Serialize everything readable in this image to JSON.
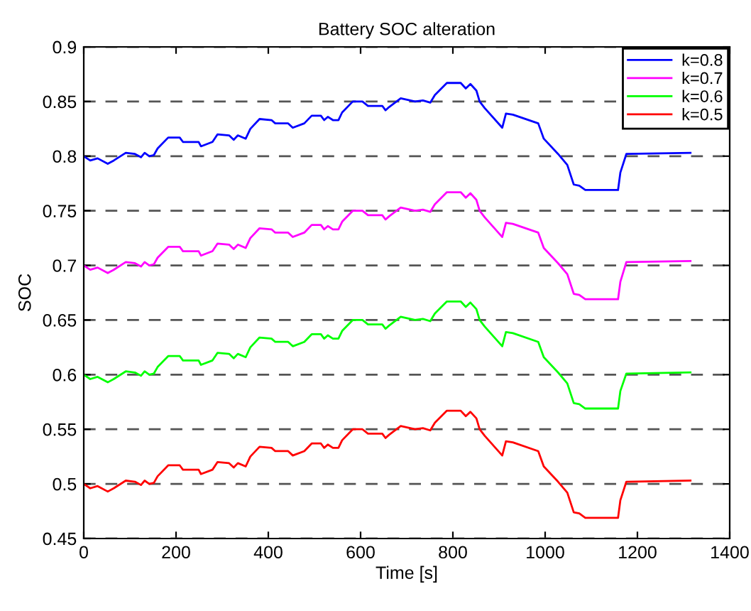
{
  "chart_data": {
    "type": "line",
    "title": "Battery SOC alteration",
    "xlabel": "Time [s]",
    "ylabel": "SOC",
    "x": [
      0,
      14,
      30,
      52,
      65,
      91,
      111,
      124,
      132,
      142,
      152,
      160,
      183,
      208,
      215,
      249,
      254,
      279,
      290,
      315,
      325,
      334,
      351,
      361,
      381,
      407,
      415,
      443,
      453,
      478,
      494,
      514,
      521,
      529,
      540,
      552,
      560,
      583,
      604,
      616,
      647,
      654,
      662,
      687,
      718,
      735,
      751,
      761,
      787,
      817,
      828,
      838,
      851,
      858,
      869,
      907,
      915,
      930,
      985,
      997,
      1028,
      1048,
      1062,
      1074,
      1087,
      1158,
      1163,
      1176,
      1315
    ],
    "series": [
      {
        "name": "k=0.8",
        "color": "#0000ff",
        "values": [
          0.8,
          0.796,
          0.798,
          0.793,
          0.796,
          0.803,
          0.802,
          0.799,
          0.803,
          0.8,
          0.801,
          0.807,
          0.817,
          0.817,
          0.813,
          0.813,
          0.809,
          0.813,
          0.82,
          0.819,
          0.815,
          0.819,
          0.816,
          0.825,
          0.834,
          0.833,
          0.83,
          0.83,
          0.826,
          0.83,
          0.837,
          0.837,
          0.833,
          0.836,
          0.833,
          0.833,
          0.84,
          0.85,
          0.85,
          0.846,
          0.846,
          0.842,
          0.845,
          0.853,
          0.85,
          0.851,
          0.849,
          0.856,
          0.867,
          0.867,
          0.862,
          0.866,
          0.86,
          0.85,
          0.844,
          0.826,
          0.839,
          0.838,
          0.83,
          0.816,
          0.802,
          0.792,
          0.774,
          0.773,
          0.769,
          0.769,
          0.785,
          0.802,
          0.803
        ]
      },
      {
        "name": "k=0.7",
        "color": "#ff00ff",
        "values": [
          0.7,
          0.696,
          0.698,
          0.693,
          0.696,
          0.703,
          0.702,
          0.699,
          0.703,
          0.7,
          0.701,
          0.707,
          0.717,
          0.717,
          0.713,
          0.713,
          0.709,
          0.713,
          0.72,
          0.719,
          0.715,
          0.719,
          0.716,
          0.725,
          0.734,
          0.733,
          0.73,
          0.73,
          0.726,
          0.73,
          0.737,
          0.737,
          0.733,
          0.736,
          0.733,
          0.733,
          0.74,
          0.75,
          0.75,
          0.746,
          0.746,
          0.742,
          0.745,
          0.753,
          0.75,
          0.751,
          0.749,
          0.756,
          0.767,
          0.767,
          0.762,
          0.766,
          0.76,
          0.75,
          0.744,
          0.726,
          0.739,
          0.738,
          0.73,
          0.716,
          0.702,
          0.692,
          0.674,
          0.673,
          0.669,
          0.669,
          0.685,
          0.703,
          0.704
        ]
      },
      {
        "name": "k=0.6",
        "color": "#00ff00",
        "values": [
          0.6,
          0.596,
          0.598,
          0.593,
          0.596,
          0.603,
          0.602,
          0.599,
          0.603,
          0.6,
          0.601,
          0.607,
          0.617,
          0.617,
          0.613,
          0.613,
          0.609,
          0.613,
          0.62,
          0.619,
          0.615,
          0.619,
          0.616,
          0.625,
          0.634,
          0.633,
          0.63,
          0.63,
          0.626,
          0.63,
          0.637,
          0.637,
          0.633,
          0.636,
          0.633,
          0.633,
          0.64,
          0.65,
          0.65,
          0.646,
          0.646,
          0.642,
          0.645,
          0.653,
          0.65,
          0.651,
          0.649,
          0.656,
          0.667,
          0.667,
          0.662,
          0.666,
          0.66,
          0.65,
          0.644,
          0.626,
          0.639,
          0.638,
          0.63,
          0.616,
          0.602,
          0.592,
          0.574,
          0.573,
          0.569,
          0.569,
          0.585,
          0.601,
          0.602
        ]
      },
      {
        "name": "k=0.5",
        "color": "#ff0000",
        "values": [
          0.5,
          0.496,
          0.498,
          0.493,
          0.496,
          0.503,
          0.502,
          0.499,
          0.503,
          0.5,
          0.501,
          0.507,
          0.517,
          0.517,
          0.513,
          0.513,
          0.509,
          0.513,
          0.52,
          0.519,
          0.515,
          0.519,
          0.516,
          0.525,
          0.534,
          0.533,
          0.53,
          0.53,
          0.526,
          0.53,
          0.537,
          0.537,
          0.533,
          0.536,
          0.533,
          0.533,
          0.54,
          0.55,
          0.55,
          0.546,
          0.546,
          0.542,
          0.545,
          0.553,
          0.55,
          0.551,
          0.549,
          0.556,
          0.567,
          0.567,
          0.562,
          0.566,
          0.56,
          0.55,
          0.544,
          0.526,
          0.539,
          0.538,
          0.53,
          0.516,
          0.502,
          0.492,
          0.474,
          0.473,
          0.469,
          0.469,
          0.485,
          0.502,
          0.503
        ]
      }
    ],
    "xlim": [
      0,
      1400
    ],
    "xticks": [
      0,
      200,
      400,
      600,
      800,
      1000,
      1200,
      1400
    ],
    "ylim": [
      0.45,
      0.9
    ],
    "yticks": [
      0.45,
      0.5,
      0.55,
      0.6,
      0.65,
      0.7,
      0.75,
      0.8,
      0.85,
      0.9
    ],
    "grid": "y",
    "legend": "top right",
    "marker": "none",
    "line_style": "solid"
  }
}
